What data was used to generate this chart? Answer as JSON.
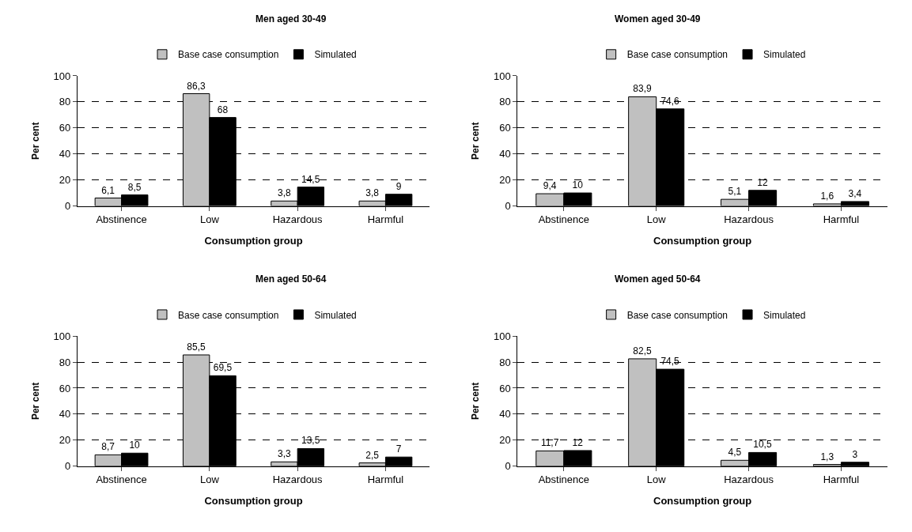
{
  "chart_data": [
    {
      "type": "bar",
      "title": "Men aged 30-49",
      "xlabel": "Consumption group",
      "ylabel": "Per cent",
      "categories": [
        "Abstinence",
        "Low",
        "Hazardous",
        "Harmful"
      ],
      "ylim": [
        0,
        100
      ],
      "yticks": [
        0,
        20,
        40,
        60,
        80,
        100
      ],
      "grid": "y",
      "legend": "top",
      "series": [
        {
          "name": "Base case consumption",
          "color": "#c0c0c0",
          "values": [
            6.1,
            86.3,
            3.8,
            3.8
          ],
          "value_labels": [
            "6,1",
            "86,3",
            "3,8",
            "3,8"
          ]
        },
        {
          "name": "Simulated",
          "color": "#000000",
          "values": [
            8.5,
            68,
            14.5,
            9
          ],
          "value_labels": [
            "8,5",
            "68",
            "14,5",
            "9"
          ]
        }
      ]
    },
    {
      "type": "bar",
      "title": "Women aged 30-49",
      "xlabel": "Consumption group",
      "ylabel": "Per cent",
      "categories": [
        "Abstinence",
        "Low",
        "Hazardous",
        "Harmful"
      ],
      "ylim": [
        0,
        100
      ],
      "yticks": [
        0,
        20,
        40,
        60,
        80,
        100
      ],
      "grid": "y",
      "legend": "top",
      "series": [
        {
          "name": "Base case consumption",
          "color": "#c0c0c0",
          "values": [
            9.4,
            83.9,
            5.1,
            1.6
          ],
          "value_labels": [
            "9,4",
            "83,9",
            "5,1",
            "1,6"
          ]
        },
        {
          "name": "Simulated",
          "color": "#000000",
          "values": [
            10,
            74.6,
            12,
            3.4
          ],
          "value_labels": [
            "10",
            "74,6",
            "12",
            "3,4"
          ]
        }
      ]
    },
    {
      "type": "bar",
      "title": "Men aged 50-64",
      "xlabel": "Consumption group",
      "ylabel": "Per cent",
      "categories": [
        "Abstinence",
        "Low",
        "Hazardous",
        "Harmful"
      ],
      "ylim": [
        0,
        100
      ],
      "yticks": [
        0,
        20,
        40,
        60,
        80,
        100
      ],
      "grid": "y",
      "legend": "top",
      "series": [
        {
          "name": "Base case consumption",
          "color": "#c0c0c0",
          "values": [
            8.7,
            85.5,
            3.3,
            2.5
          ],
          "value_labels": [
            "8,7",
            "85,5",
            "3,3",
            "2,5"
          ]
        },
        {
          "name": "Simulated",
          "color": "#000000",
          "values": [
            10,
            69.5,
            13.5,
            7
          ],
          "value_labels": [
            "10",
            "69,5",
            "13,5",
            "7"
          ]
        }
      ]
    },
    {
      "type": "bar",
      "title": "Women aged 50-64",
      "xlabel": "Consumption group",
      "ylabel": "Per cent",
      "categories": [
        "Abstinence",
        "Low",
        "Hazardous",
        "Harmful"
      ],
      "ylim": [
        0,
        100
      ],
      "yticks": [
        0,
        20,
        40,
        60,
        80,
        100
      ],
      "grid": "y",
      "legend": "top",
      "series": [
        {
          "name": "Base case consumption",
          "color": "#c0c0c0",
          "values": [
            11.7,
            82.5,
            4.5,
            1.3
          ],
          "value_labels": [
            "11,7",
            "82,5",
            "4,5",
            "1,3"
          ]
        },
        {
          "name": "Simulated",
          "color": "#000000",
          "values": [
            12,
            74.5,
            10.5,
            3
          ],
          "value_labels": [
            "12",
            "74,5",
            "10,5",
            "3"
          ]
        }
      ]
    }
  ]
}
